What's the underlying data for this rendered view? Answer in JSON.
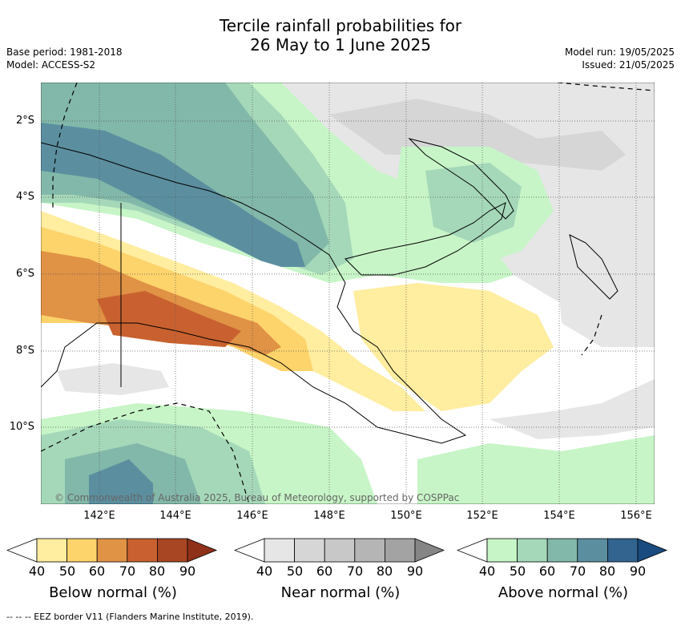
{
  "header": {
    "title_line1": "Tercile rainfall probabilities for",
    "title_line2": "26 May to 1 June 2025",
    "base_period": "Base period: 1981-2018",
    "model": "Model: ACCESS-S2",
    "model_run": "Model run: 19/05/2025",
    "issued": "Issued: 21/05/2025"
  },
  "map": {
    "lat_labels": [
      "2°S",
      "4°S",
      "6°S",
      "8°S",
      "10°S"
    ],
    "lon_labels": [
      "142°E",
      "144°E",
      "146°E",
      "148°E",
      "150°E",
      "152°E",
      "154°E",
      "156°E"
    ],
    "copyright": "© Commonwealth of Australia 2025, Bureau of Meteorology, supported by COSPPac"
  },
  "legends": [
    {
      "label": "Below normal (%)",
      "ticks": [
        "40",
        "50",
        "60",
        "70",
        "80",
        "90"
      ],
      "colors": [
        "#ffffff",
        "#ffeda0",
        "#fdd36b",
        "#e09245",
        "#c8612f",
        "#a84623",
        "#8e3118"
      ]
    },
    {
      "label": "Near normal (%)",
      "ticks": [
        "40",
        "50",
        "60",
        "70",
        "80",
        "90"
      ],
      "colors": [
        "#ffffff",
        "#e6e6e6",
        "#d6d6d6",
        "#c8c8c8",
        "#b5b5b5",
        "#a3a3a3",
        "#858585"
      ]
    },
    {
      "label": "Above normal (%)",
      "ticks": [
        "40",
        "50",
        "60",
        "70",
        "80",
        "90"
      ],
      "colors": [
        "#ffffff",
        "#c7f5c7",
        "#a5d8b9",
        "#82b8a9",
        "#5b8fa0",
        "#33648f",
        "#1a4b80"
      ]
    }
  ],
  "footer": {
    "eez_note": "-- -- -- EEZ border V11 (Flanders Marine Institute, 2019)."
  }
}
